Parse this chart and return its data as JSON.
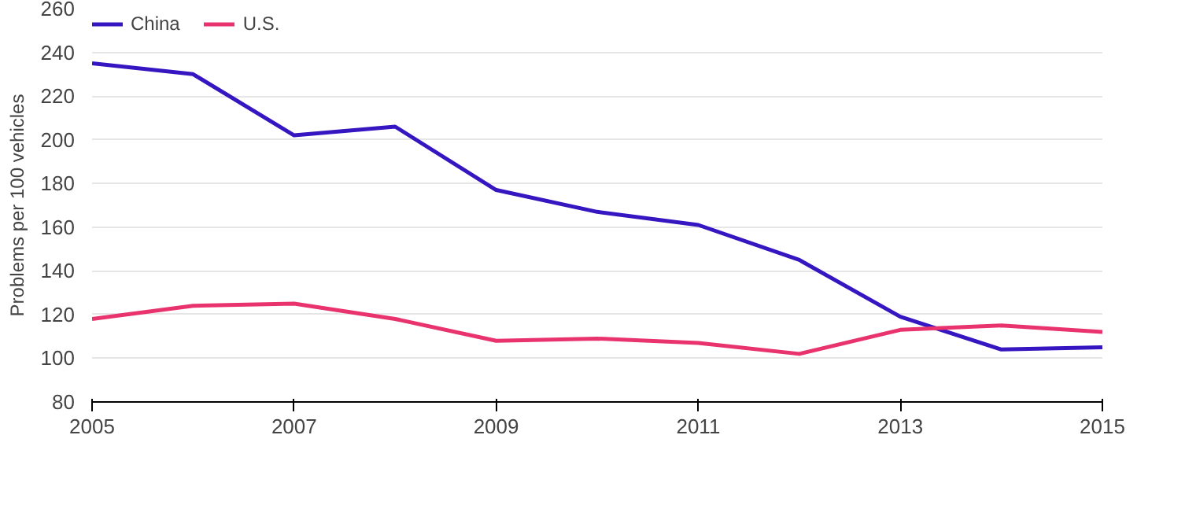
{
  "chart_data": {
    "type": "line",
    "ylabel": "Problems per 100 vehicles",
    "x": [
      2005,
      2006,
      2007,
      2008,
      2009,
      2010,
      2011,
      2012,
      2013,
      2014,
      2015
    ],
    "series": [
      {
        "name": "China",
        "color": "#3516c0",
        "values": [
          235,
          230,
          202,
          206,
          177,
          167,
          161,
          145,
          119,
          104,
          105
        ]
      },
      {
        "name": "U.S.",
        "color": "#e8336e",
        "values": [
          118,
          124,
          125,
          118,
          108,
          109,
          107,
          102,
          113,
          115,
          112
        ]
      }
    ],
    "xlim": [
      2005,
      2015
    ],
    "xticks": [
      2005,
      2007,
      2009,
      2011,
      2013,
      2015
    ],
    "ylim": [
      80,
      260
    ],
    "yticks": [
      80,
      100,
      120,
      140,
      160,
      180,
      200,
      220,
      240,
      260
    ],
    "grid": "y",
    "legend": "top left",
    "marker": "none",
    "line_style": "solid"
  }
}
